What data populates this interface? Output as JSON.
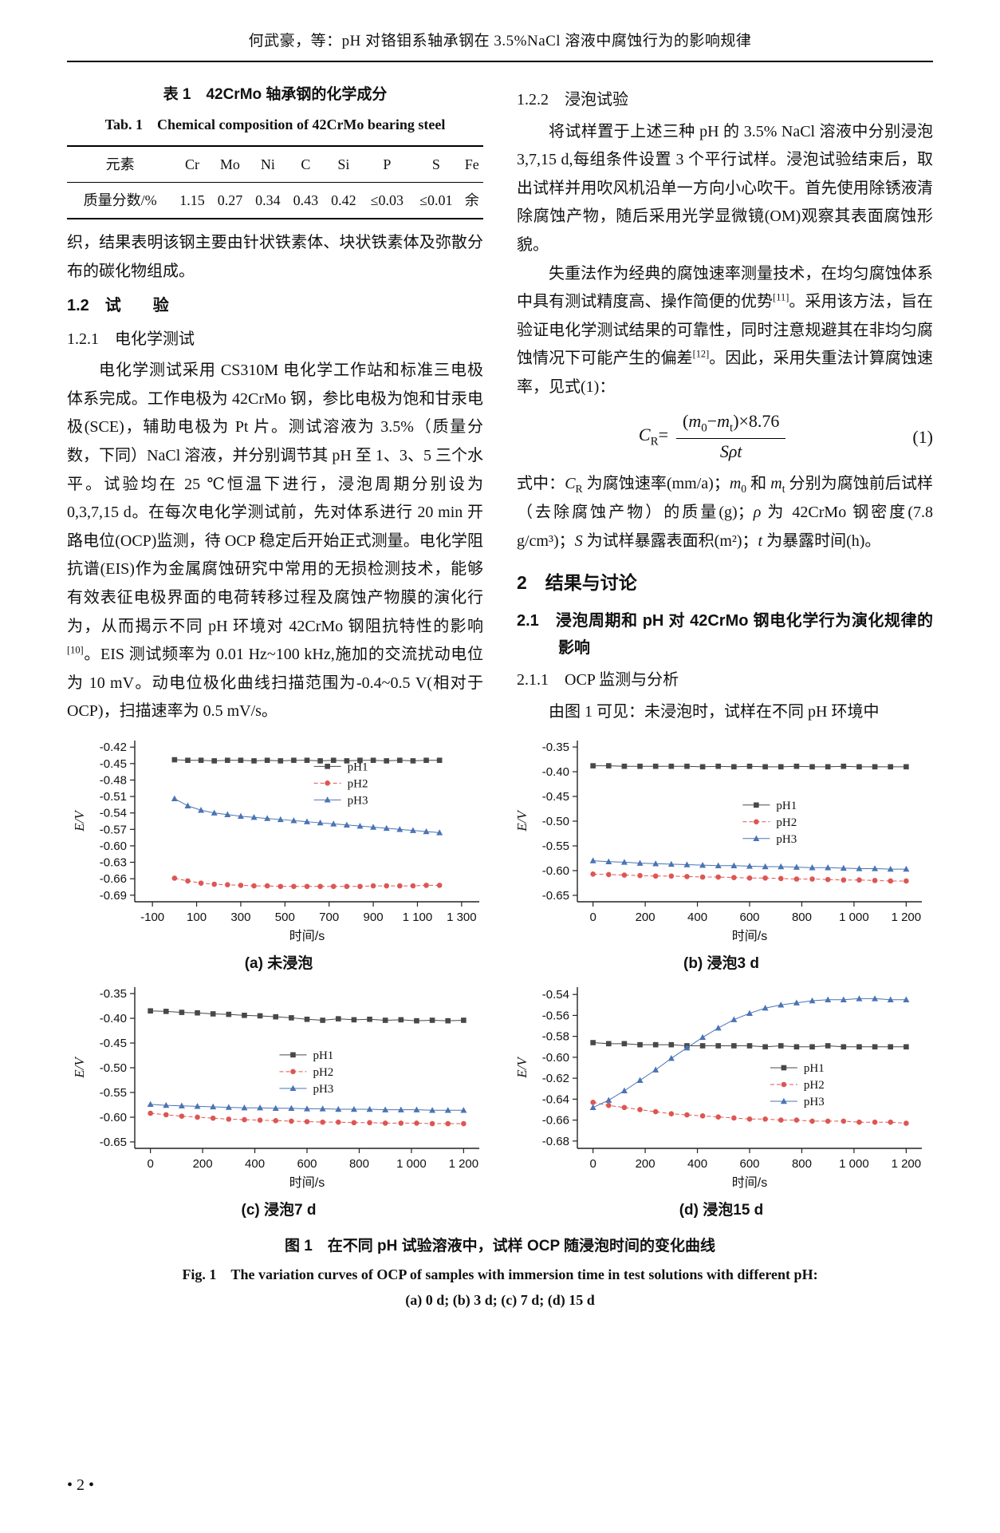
{
  "page": {
    "header": "何武豪，等：pH 对铬钼系轴承钢在 3.5%NaCl 溶液中腐蚀行为的影响规律",
    "footer": "• 2 •"
  },
  "table": {
    "title_cn": "表 1　42CrMo 轴承钢的化学成分",
    "title_en": "Tab. 1　Chemical composition of 42CrMo bearing steel",
    "headers": [
      "元素",
      "Cr",
      "Mo",
      "Ni",
      "C",
      "Si",
      "P",
      "S",
      "Fe"
    ],
    "row": [
      "质量分数/%",
      "1.15",
      "0.27",
      "0.34",
      "0.43",
      "0.42",
      "≤0.03",
      "≤0.01",
      "余"
    ]
  },
  "left_column": {
    "para_cont": "织，结果表明该钢主要由针状铁素体、块状铁素体及弥散分布的碳化物组成。",
    "h_1_2": "1.2　试　　验",
    "h_1_2_1": "1.2.1　电化学测试",
    "para_echem": "电化学测试采用 CS310M 电化学工作站和标准三电极体系完成。工作电极为 42CrMo 钢，参比电极为饱和甘汞电极(SCE)，辅助电极为 Pt 片。测试溶液为 3.5%（质量分数，下同）NaCl 溶液，并分别调节其 pH 至 1、3、5 三个水平。试验均在 25 ℃恒温下进行，浸泡周期分别设为 0,3,7,15 d。在每次电化学测试前，先对体系进行 20 min 开路电位(OCP)监测，待 OCP 稳定后开始正式测量。电化学阻抗谱(EIS)作为金属腐蚀研究中常用的无损检测技术，能够有效表征电极界面的电荷转移过程及腐蚀产物膜的演化行为，从而揭示不同 pH 环境对 42CrMo 钢阻抗特性的影响<sup>[10]</sup>。EIS 测试频率为 0.01 Hz~100 kHz,施加的交流扰动电位为 10 mV。动电位极化曲线扫描范围为-0.4~0.5 V(相对于 OCP)，扫描速率为 0.5 mV/s。"
  },
  "right_column": {
    "h_1_2_2": "1.2.2　浸泡试验",
    "para_immersion": "将试样置于上述三种 pH 的 3.5% NaCl 溶液中分别浸泡 3,7,15 d,每组条件设置 3 个平行试样。浸泡试验结束后，取出试样并用吹风机沿单一方向小心吹干。首先使用除锈液清除腐蚀产物，随后采用光学显微镜(OM)观察其表面腐蚀形貌。",
    "para_weightloss": "失重法作为经典的腐蚀速率测量技术，在均匀腐蚀体系中具有测试精度高、操作简便的优势<sup>[11]</sup>。采用该方法，旨在验证电化学测试结果的可靠性，同时注意规避其在非均匀腐蚀情况下可能产生的偏差<sup>[12]</sup>。因此，采用失重法计算腐蚀速率，见式(1)：",
    "formula": {
      "lhs": "<i>C</i><sub>R</sub>=",
      "num": "(<i>m</i><sub>0</sub>−<i>m</i><sub>t</sub>)×8.76",
      "den": "<i>Sρt</i>",
      "number": "(1)"
    },
    "para_terms": "式中：<i>C</i><sub>R</sub> 为腐蚀速率(mm/a)；<i>m</i><sub>0</sub> 和 <i>m</i><sub>t</sub> 分别为腐蚀前后试样（去除腐蚀产物）的质量(g)；<i>ρ</i> 为 42CrMo 钢密度(7.8 g/cm³)；<i>S</i> 为试样暴露表面积(m²)；<i>t</i> 为暴露时间(h)。",
    "h_2": "2　结果与讨论",
    "h_2_1": "2.1　浸泡周期和 pH 对 42CrMo 钢电化学行为演化规律的影响",
    "h_2_1_1": "2.1.1　OCP 监测与分析",
    "para_ocp": "由图 1 可见：未浸泡时，试样在不同 pH 环境中"
  },
  "figure": {
    "caption_cn": "图 1　在不同 pH 试验溶液中，试样 OCP 随浸泡时间的变化曲线",
    "caption_en": "Fig. 1　The variation curves of OCP of samples with immersion time in test solutions with different pH:",
    "caption_parts": "(a) 0 d; (b) 3 d; (c) 7 d; (d) 15 d"
  },
  "chart_data": [
    {
      "type": "line",
      "caption": "(a) 未浸泡",
      "xlabel": "时间/s",
      "ylabel": "E/V",
      "xlim": [
        -180,
        1380
      ],
      "ylim": [
        -0.702,
        -0.408
      ],
      "xticks": [
        -100,
        100,
        300,
        500,
        700,
        900,
        1100,
        1300
      ],
      "xtick_labels": [
        "-100",
        "100",
        "300",
        "500",
        "700",
        "900",
        "1 100",
        "1 300"
      ],
      "yticks": [
        -0.42,
        -0.45,
        -0.48,
        -0.51,
        -0.54,
        -0.57,
        -0.6,
        -0.63,
        -0.66,
        -0.69
      ],
      "ytick_labels": [
        "-0.42",
        "-0.45",
        "-0.48",
        "-0.51",
        "-0.54",
        "-0.57",
        "-0.60",
        "-0.63",
        "-0.66",
        "-0.69"
      ],
      "legend": {
        "x": 0.52,
        "y": 0.16
      },
      "x": [
        0,
        60,
        120,
        180,
        240,
        300,
        360,
        420,
        480,
        540,
        600,
        660,
        720,
        780,
        840,
        900,
        960,
        1020,
        1080,
        1140,
        1200
      ],
      "series": [
        {
          "name": "pH1",
          "color": "#484848",
          "marker": "square",
          "line": "solid",
          "y": [
            -0.443,
            -0.444,
            -0.444,
            -0.445,
            -0.444,
            -0.444,
            -0.445,
            -0.444,
            -0.445,
            -0.444,
            -0.444,
            -0.445,
            -0.444,
            -0.445,
            -0.444,
            -0.444,
            -0.445,
            -0.444,
            -0.445,
            -0.444,
            -0.444
          ]
        },
        {
          "name": "pH2",
          "color": "#dd5653",
          "marker": "circle",
          "line": "dashed",
          "y": [
            -0.659,
            -0.664,
            -0.668,
            -0.67,
            -0.671,
            -0.672,
            -0.673,
            -0.673,
            -0.674,
            -0.674,
            -0.674,
            -0.674,
            -0.674,
            -0.674,
            -0.674,
            -0.673,
            -0.673,
            -0.673,
            -0.673,
            -0.672,
            -0.672
          ]
        },
        {
          "name": "pH3",
          "color": "#4a74b4",
          "marker": "triangle",
          "line": "solid",
          "y": [
            -0.514,
            -0.527,
            -0.535,
            -0.54,
            -0.543,
            -0.546,
            -0.548,
            -0.55,
            -0.552,
            -0.554,
            -0.556,
            -0.558,
            -0.56,
            -0.562,
            -0.564,
            -0.566,
            -0.568,
            -0.57,
            -0.572,
            -0.574,
            -0.576
          ]
        }
      ]
    },
    {
      "type": "line",
      "caption": "(b) 浸泡3 d",
      "xlabel": "时间/s",
      "ylabel": "E/V",
      "xlim": [
        -60,
        1260
      ],
      "ylim": [
        -0.663,
        -0.337
      ],
      "xticks": [
        0,
        200,
        400,
        600,
        800,
        1000,
        1200
      ],
      "xtick_labels": [
        "0",
        "200",
        "400",
        "600",
        "800",
        "1 000",
        "1 200"
      ],
      "yticks": [
        -0.35,
        -0.4,
        -0.45,
        -0.5,
        -0.55,
        -0.6,
        -0.65
      ],
      "ytick_labels": [
        "-0.35",
        "-0.40",
        "-0.45",
        "-0.50",
        "-0.55",
        "-0.60",
        "-0.65"
      ],
      "legend": {
        "x": 0.48,
        "y": 0.4
      },
      "x": [
        0,
        60,
        120,
        180,
        240,
        300,
        360,
        420,
        480,
        540,
        600,
        660,
        720,
        780,
        840,
        900,
        960,
        1020,
        1080,
        1140,
        1200
      ],
      "series": [
        {
          "name": "pH1",
          "color": "#484848",
          "marker": "square",
          "line": "solid",
          "y": [
            -0.388,
            -0.388,
            -0.389,
            -0.389,
            -0.389,
            -0.389,
            -0.389,
            -0.39,
            -0.389,
            -0.39,
            -0.389,
            -0.39,
            -0.39,
            -0.389,
            -0.39,
            -0.39,
            -0.389,
            -0.39,
            -0.39,
            -0.39,
            -0.39
          ]
        },
        {
          "name": "pH2",
          "color": "#dd5653",
          "marker": "circle",
          "line": "dashed",
          "y": [
            -0.607,
            -0.608,
            -0.609,
            -0.61,
            -0.611,
            -0.611,
            -0.612,
            -0.613,
            -0.613,
            -0.614,
            -0.615,
            -0.615,
            -0.616,
            -0.617,
            -0.617,
            -0.618,
            -0.619,
            -0.619,
            -0.62,
            -0.621,
            -0.621
          ]
        },
        {
          "name": "pH3",
          "color": "#4a74b4",
          "marker": "triangle",
          "line": "solid",
          "y": [
            -0.58,
            -0.582,
            -0.583,
            -0.585,
            -0.586,
            -0.587,
            -0.588,
            -0.589,
            -0.59,
            -0.59,
            -0.591,
            -0.592,
            -0.592,
            -0.593,
            -0.594,
            -0.594,
            -0.595,
            -0.596,
            -0.596,
            -0.597,
            -0.597
          ]
        }
      ]
    },
    {
      "type": "line",
      "caption": "(c) 浸泡7 d",
      "xlabel": "时间/s",
      "ylabel": "E/V",
      "xlim": [
        -60,
        1260
      ],
      "ylim": [
        -0.663,
        -0.337
      ],
      "xticks": [
        0,
        200,
        400,
        600,
        800,
        1000,
        1200
      ],
      "xtick_labels": [
        "0",
        "200",
        "400",
        "600",
        "800",
        "1 000",
        "1 200"
      ],
      "yticks": [
        -0.35,
        -0.4,
        -0.45,
        -0.5,
        -0.55,
        -0.6,
        -0.65
      ],
      "ytick_labels": [
        "-0.35",
        "-0.40",
        "-0.45",
        "-0.50",
        "-0.55",
        "-0.60",
        "-0.65"
      ],
      "legend": {
        "x": 0.42,
        "y": 0.42
      },
      "x": [
        0,
        60,
        120,
        180,
        240,
        300,
        360,
        420,
        480,
        540,
        600,
        660,
        720,
        780,
        840,
        900,
        960,
        1020,
        1080,
        1140,
        1200
      ],
      "series": [
        {
          "name": "pH1",
          "color": "#484848",
          "marker": "square",
          "line": "solid",
          "y": [
            -0.385,
            -0.386,
            -0.388,
            -0.389,
            -0.391,
            -0.392,
            -0.394,
            -0.395,
            -0.397,
            -0.399,
            -0.402,
            -0.404,
            -0.401,
            -0.403,
            -0.402,
            -0.404,
            -0.403,
            -0.405,
            -0.404,
            -0.405,
            -0.404
          ]
        },
        {
          "name": "pH2",
          "color": "#dd5653",
          "marker": "circle",
          "line": "dashed",
          "y": [
            -0.592,
            -0.595,
            -0.598,
            -0.6,
            -0.602,
            -0.604,
            -0.605,
            -0.606,
            -0.607,
            -0.608,
            -0.609,
            -0.61,
            -0.61,
            -0.611,
            -0.611,
            -0.612,
            -0.612,
            -0.612,
            -0.613,
            -0.613,
            -0.613
          ]
        },
        {
          "name": "pH3",
          "color": "#4a74b4",
          "marker": "triangle",
          "line": "solid",
          "y": [
            -0.574,
            -0.576,
            -0.577,
            -0.578,
            -0.579,
            -0.58,
            -0.581,
            -0.581,
            -0.582,
            -0.582,
            -0.583,
            -0.583,
            -0.584,
            -0.584,
            -0.584,
            -0.585,
            -0.585,
            -0.585,
            -0.586,
            -0.586,
            -0.586
          ]
        }
      ]
    },
    {
      "type": "line",
      "caption": "(d) 浸泡15 d",
      "xlabel": "时间/s",
      "ylabel": "E/V",
      "xlim": [
        -60,
        1260
      ],
      "ylim": [
        -0.687,
        -0.533
      ],
      "xticks": [
        0,
        200,
        400,
        600,
        800,
        1000,
        1200
      ],
      "xtick_labels": [
        "0",
        "200",
        "400",
        "600",
        "800",
        "1 000",
        "1 200"
      ],
      "yticks": [
        -0.54,
        -0.56,
        -0.58,
        -0.6,
        -0.62,
        -0.64,
        -0.66,
        -0.68
      ],
      "ytick_labels": [
        "-0.54",
        "-0.56",
        "-0.58",
        "-0.60",
        "-0.62",
        "-0.64",
        "-0.66",
        "-0.68"
      ],
      "legend": {
        "x": 0.56,
        "y": 0.5
      },
      "x": [
        0,
        60,
        120,
        180,
        240,
        300,
        360,
        420,
        480,
        540,
        600,
        660,
        720,
        780,
        840,
        900,
        960,
        1020,
        1080,
        1140,
        1200
      ],
      "series": [
        {
          "name": "pH1",
          "color": "#484848",
          "marker": "square",
          "line": "solid",
          "y": [
            -0.586,
            -0.587,
            -0.587,
            -0.588,
            -0.588,
            -0.588,
            -0.589,
            -0.589,
            -0.589,
            -0.589,
            -0.589,
            -0.59,
            -0.589,
            -0.59,
            -0.59,
            -0.589,
            -0.59,
            -0.59,
            -0.59,
            -0.59,
            -0.59
          ]
        },
        {
          "name": "pH2",
          "color": "#dd5653",
          "marker": "circle",
          "line": "dashed",
          "y": [
            -0.643,
            -0.646,
            -0.648,
            -0.65,
            -0.652,
            -0.654,
            -0.655,
            -0.656,
            -0.657,
            -0.658,
            -0.659,
            -0.659,
            -0.66,
            -0.66,
            -0.661,
            -0.661,
            -0.661,
            -0.662,
            -0.662,
            -0.662,
            -0.663
          ]
        },
        {
          "name": "pH3",
          "color": "#4a74b4",
          "marker": "triangle",
          "line": "solid",
          "y": [
            -0.648,
            -0.641,
            -0.632,
            -0.622,
            -0.612,
            -0.601,
            -0.591,
            -0.581,
            -0.572,
            -0.564,
            -0.558,
            -0.553,
            -0.55,
            -0.548,
            -0.546,
            -0.545,
            -0.545,
            -0.544,
            -0.544,
            -0.545,
            -0.545
          ]
        }
      ]
    }
  ]
}
